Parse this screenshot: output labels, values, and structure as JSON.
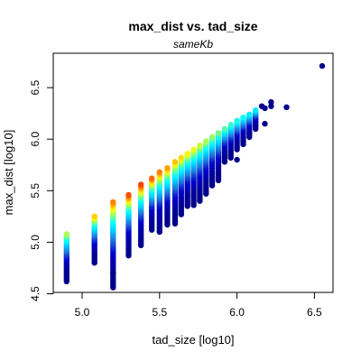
{
  "chart_data": {
    "type": "scatter",
    "title": "max_dist vs. tad_size",
    "subtitle": "sameKb",
    "xlabel": "tad_size [log10]",
    "ylabel": "max_dist [log10]",
    "xlim": [
      4.8,
      6.6
    ],
    "ylim": [
      4.5,
      6.8
    ],
    "x_ticks": [
      "5.0",
      "5.5",
      "6.0",
      "6.5"
    ],
    "y_ticks": [
      "4.5",
      "5.0",
      "5.5",
      "6.0",
      "6.5"
    ],
    "grid": false,
    "legend": "none",
    "color_scale": [
      "#00008b",
      "#0000cd",
      "#1e6fd9",
      "#00c8ff",
      "#00ffff",
      "#7fff7f",
      "#ffff00",
      "#ff8c00",
      "#ff3300"
    ],
    "column_summary": [
      {
        "x": 4.9,
        "y_min": 4.62,
        "y_max": 5.08
      },
      {
        "x": 5.08,
        "y_min": 4.8,
        "y_max": 5.25
      },
      {
        "x": 5.2,
        "y_min": 4.56,
        "y_max": 5.39
      },
      {
        "x": 5.3,
        "y_min": 4.87,
        "y_max": 5.46
      },
      {
        "x": 5.38,
        "y_min": 4.97,
        "y_max": 5.56
      },
      {
        "x": 5.45,
        "y_min": 5.12,
        "y_max": 5.62
      },
      {
        "x": 5.5,
        "y_min": 5.1,
        "y_max": 5.68
      },
      {
        "x": 5.55,
        "y_min": 5.17,
        "y_max": 5.72
      },
      {
        "x": 5.6,
        "y_min": 5.18,
        "y_max": 5.78
      },
      {
        "x": 5.64,
        "y_min": 5.27,
        "y_max": 5.82
      },
      {
        "x": 5.68,
        "y_min": 5.35,
        "y_max": 5.86
      },
      {
        "x": 5.72,
        "y_min": 5.36,
        "y_max": 5.9
      },
      {
        "x": 5.76,
        "y_min": 5.4,
        "y_max": 5.94
      },
      {
        "x": 5.8,
        "y_min": 5.47,
        "y_max": 5.98
      },
      {
        "x": 5.84,
        "y_min": 5.55,
        "y_max": 6.02
      },
      {
        "x": 5.88,
        "y_min": 5.6,
        "y_max": 6.06
      },
      {
        "x": 5.92,
        "y_min": 5.78,
        "y_max": 6.1
      },
      {
        "x": 5.96,
        "y_min": 5.82,
        "y_max": 6.14
      },
      {
        "x": 6.0,
        "y_min": 5.9,
        "y_max": 6.18
      },
      {
        "x": 6.04,
        "y_min": 5.95,
        "y_max": 6.21
      },
      {
        "x": 6.08,
        "y_min": 6.02,
        "y_max": 6.24
      },
      {
        "x": 6.12,
        "y_min": 6.1,
        "y_max": 6.28
      }
    ],
    "extra_points": [
      {
        "x": 5.2,
        "y": 4.7
      },
      {
        "x": 5.6,
        "y": 5.2
      },
      {
        "x": 6.0,
        "y": 5.8
      },
      {
        "x": 6.16,
        "y": 6.32
      },
      {
        "x": 6.18,
        "y": 6.3
      },
      {
        "x": 6.18,
        "y": 6.15
      },
      {
        "x": 6.22,
        "y": 6.36
      },
      {
        "x": 6.22,
        "y": 6.32
      },
      {
        "x": 6.32,
        "y": 6.31
      },
      {
        "x": 6.55,
        "y": 6.71
      }
    ]
  }
}
